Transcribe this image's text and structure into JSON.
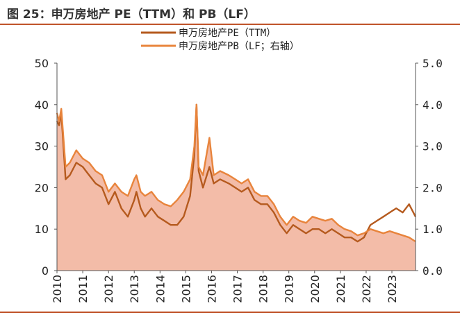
{
  "title": "图 25：申万房地产 PE（TTM）和 PB（LF）",
  "chart_data": {
    "type": "line",
    "title": "",
    "x_start": "2010-01",
    "x_end": "2023-12",
    "x_ticks": [
      "2010",
      "2011",
      "2012",
      "2013",
      "2014",
      "2015",
      "2016",
      "2017",
      "2018",
      "2019",
      "2020",
      "2021",
      "2022",
      "2023"
    ],
    "y_left": {
      "label": "",
      "range": [
        0,
        50
      ],
      "ticks": [
        "0",
        "10",
        "20",
        "30",
        "40",
        "50"
      ]
    },
    "y_right": {
      "label": "",
      "range": [
        0,
        5
      ],
      "ticks": [
        "0.0",
        "1.0",
        "2.0",
        "3.0",
        "4.0",
        "5.0"
      ]
    },
    "legend_position": "top-center",
    "grid": false,
    "series": [
      {
        "name": "申万房地产PE（TTM）",
        "axis": "left",
        "style": "line",
        "color": "#b55a1e",
        "points": [
          [
            "2010-01",
            36
          ],
          [
            "2010-02",
            35
          ],
          [
            "2010-03",
            38
          ],
          [
            "2010-04",
            30
          ],
          [
            "2010-05",
            22
          ],
          [
            "2010-07",
            23
          ],
          [
            "2010-10",
            26
          ],
          [
            "2011-01",
            25
          ],
          [
            "2011-04",
            23
          ],
          [
            "2011-07",
            21
          ],
          [
            "2011-10",
            20
          ],
          [
            "2012-01",
            16
          ],
          [
            "2012-04",
            19
          ],
          [
            "2012-07",
            15
          ],
          [
            "2012-10",
            13
          ],
          [
            "2013-01",
            17
          ],
          [
            "2013-02",
            19
          ],
          [
            "2013-04",
            15
          ],
          [
            "2013-06",
            13
          ],
          [
            "2013-09",
            15
          ],
          [
            "2013-12",
            13
          ],
          [
            "2014-03",
            12
          ],
          [
            "2014-06",
            11
          ],
          [
            "2014-09",
            11
          ],
          [
            "2014-12",
            13
          ],
          [
            "2015-03",
            18
          ],
          [
            "2015-05",
            28
          ],
          [
            "2015-06",
            40
          ],
          [
            "2015-07",
            24
          ],
          [
            "2015-09",
            20
          ],
          [
            "2015-12",
            25
          ],
          [
            "2016-02",
            21
          ],
          [
            "2016-05",
            22
          ],
          [
            "2016-09",
            21
          ],
          [
            "2016-12",
            20
          ],
          [
            "2017-03",
            19
          ],
          [
            "2017-06",
            20
          ],
          [
            "2017-09",
            17
          ],
          [
            "2017-12",
            16
          ],
          [
            "2018-03",
            16
          ],
          [
            "2018-06",
            14
          ],
          [
            "2018-09",
            11
          ],
          [
            "2018-12",
            9
          ],
          [
            "2019-03",
            11
          ],
          [
            "2019-06",
            10
          ],
          [
            "2019-09",
            9
          ],
          [
            "2019-12",
            10
          ],
          [
            "2020-03",
            10
          ],
          [
            "2020-06",
            9
          ],
          [
            "2020-09",
            10
          ],
          [
            "2020-12",
            9
          ],
          [
            "2021-03",
            8
          ],
          [
            "2021-06",
            8
          ],
          [
            "2021-09",
            7
          ],
          [
            "2021-12",
            8
          ],
          [
            "2022-03",
            11
          ],
          [
            "2022-06",
            12
          ],
          [
            "2022-09",
            13
          ],
          [
            "2022-12",
            14
          ],
          [
            "2023-03",
            15
          ],
          [
            "2023-06",
            14
          ],
          [
            "2023-09",
            16
          ],
          [
            "2023-12",
            13
          ]
        ]
      },
      {
        "name": "申万房地产PB（LF；右轴）",
        "axis": "right",
        "style": "area",
        "color": "#e8843c",
        "fill": "#f3bca8",
        "points": [
          [
            "2010-01",
            3.8
          ],
          [
            "2010-02",
            3.6
          ],
          [
            "2010-03",
            3.9
          ],
          [
            "2010-04",
            3.2
          ],
          [
            "2010-05",
            2.5
          ],
          [
            "2010-07",
            2.6
          ],
          [
            "2010-10",
            2.9
          ],
          [
            "2011-01",
            2.7
          ],
          [
            "2011-04",
            2.6
          ],
          [
            "2011-07",
            2.4
          ],
          [
            "2011-10",
            2.3
          ],
          [
            "2012-01",
            1.9
          ],
          [
            "2012-04",
            2.1
          ],
          [
            "2012-07",
            1.9
          ],
          [
            "2012-10",
            1.8
          ],
          [
            "2013-01",
            2.2
          ],
          [
            "2013-02",
            2.3
          ],
          [
            "2013-04",
            1.9
          ],
          [
            "2013-06",
            1.8
          ],
          [
            "2013-09",
            1.9
          ],
          [
            "2013-12",
            1.7
          ],
          [
            "2014-03",
            1.6
          ],
          [
            "2014-06",
            1.55
          ],
          [
            "2014-09",
            1.7
          ],
          [
            "2014-12",
            1.9
          ],
          [
            "2015-03",
            2.2
          ],
          [
            "2015-05",
            3.0
          ],
          [
            "2015-06",
            4.0
          ],
          [
            "2015-07",
            2.5
          ],
          [
            "2015-09",
            2.3
          ],
          [
            "2015-12",
            3.2
          ],
          [
            "2016-02",
            2.3
          ],
          [
            "2016-05",
            2.4
          ],
          [
            "2016-09",
            2.3
          ],
          [
            "2016-12",
            2.2
          ],
          [
            "2017-03",
            2.1
          ],
          [
            "2017-06",
            2.2
          ],
          [
            "2017-09",
            1.9
          ],
          [
            "2017-12",
            1.8
          ],
          [
            "2018-03",
            1.8
          ],
          [
            "2018-06",
            1.6
          ],
          [
            "2018-09",
            1.3
          ],
          [
            "2018-12",
            1.1
          ],
          [
            "2019-03",
            1.3
          ],
          [
            "2019-06",
            1.2
          ],
          [
            "2019-09",
            1.15
          ],
          [
            "2019-12",
            1.3
          ],
          [
            "2020-03",
            1.25
          ],
          [
            "2020-06",
            1.2
          ],
          [
            "2020-09",
            1.25
          ],
          [
            "2020-12",
            1.1
          ],
          [
            "2021-03",
            1.0
          ],
          [
            "2021-06",
            0.95
          ],
          [
            "2021-09",
            0.85
          ],
          [
            "2021-12",
            0.9
          ],
          [
            "2022-03",
            1.0
          ],
          [
            "2022-06",
            0.95
          ],
          [
            "2022-09",
            0.9
          ],
          [
            "2022-12",
            0.95
          ],
          [
            "2023-03",
            0.9
          ],
          [
            "2023-06",
            0.85
          ],
          [
            "2023-09",
            0.8
          ],
          [
            "2023-12",
            0.7
          ]
        ]
      }
    ]
  }
}
